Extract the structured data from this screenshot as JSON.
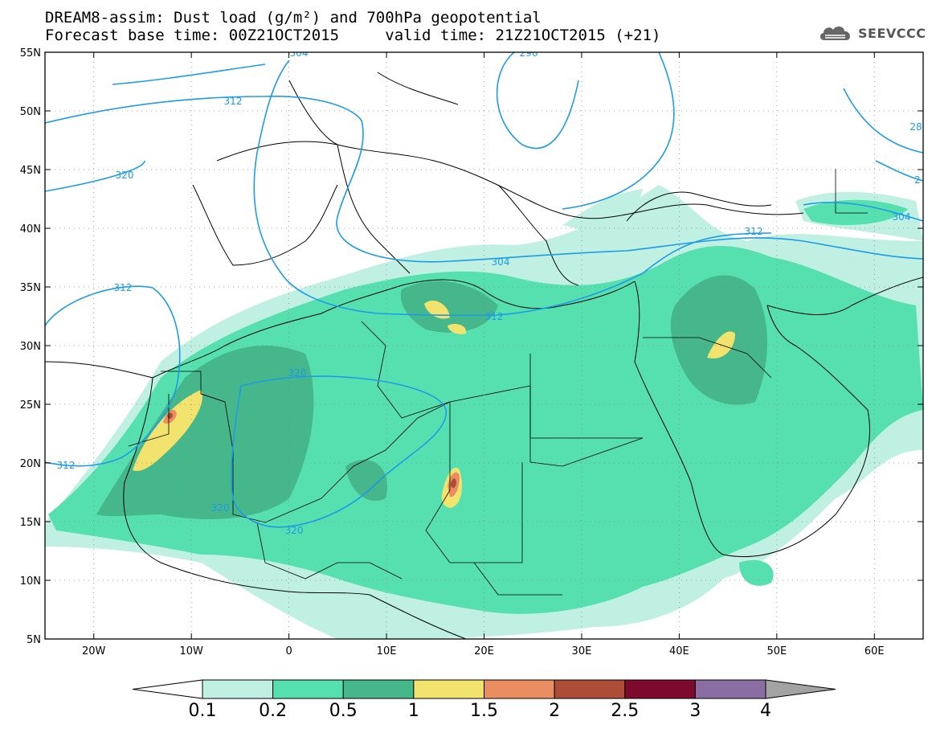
{
  "title": {
    "line1": "DREAM8-assim: Dust load (g/m²) and 700hPa geopotential",
    "line2_base_label": "Forecast base time: 00Z21OCT2015",
    "line2_valid_label": "valid time: 21Z21OCT2015 (+21)"
  },
  "logo": {
    "text": "SEEVCCC",
    "icon": "cloud-icon"
  },
  "map": {
    "lon_range": [
      -25,
      65
    ],
    "lat_range": [
      5,
      55
    ],
    "lon_ticks": [
      "20W",
      "10W",
      "0",
      "10E",
      "20E",
      "30E",
      "40E",
      "50E",
      "60E"
    ],
    "lat_ticks": [
      "55N",
      "50N",
      "45N",
      "40N",
      "35N",
      "30N",
      "25N",
      "20N",
      "15N",
      "10N",
      "5N"
    ],
    "grid": "dotted",
    "contour_labels": [
      "304",
      "296",
      "312",
      "320",
      "312",
      "304",
      "312",
      "312",
      "320",
      "320",
      "320",
      "312",
      "304",
      "312",
      "28",
      "2"
    ]
  },
  "colorbar": {
    "ticks": [
      "0.1",
      "0.2",
      "0.5",
      "1",
      "1.5",
      "2",
      "2.5",
      "3",
      "4"
    ],
    "colors": [
      "#bff0e1",
      "#56e0b0",
      "#45b78a",
      "#f2e36f",
      "#ea8e62",
      "#ad4c37",
      "#7d0a2e",
      "#8a6ea3",
      "#a3a3a3"
    ]
  },
  "colors": {
    "contour": "#1e9be6",
    "coast": "#000000"
  }
}
